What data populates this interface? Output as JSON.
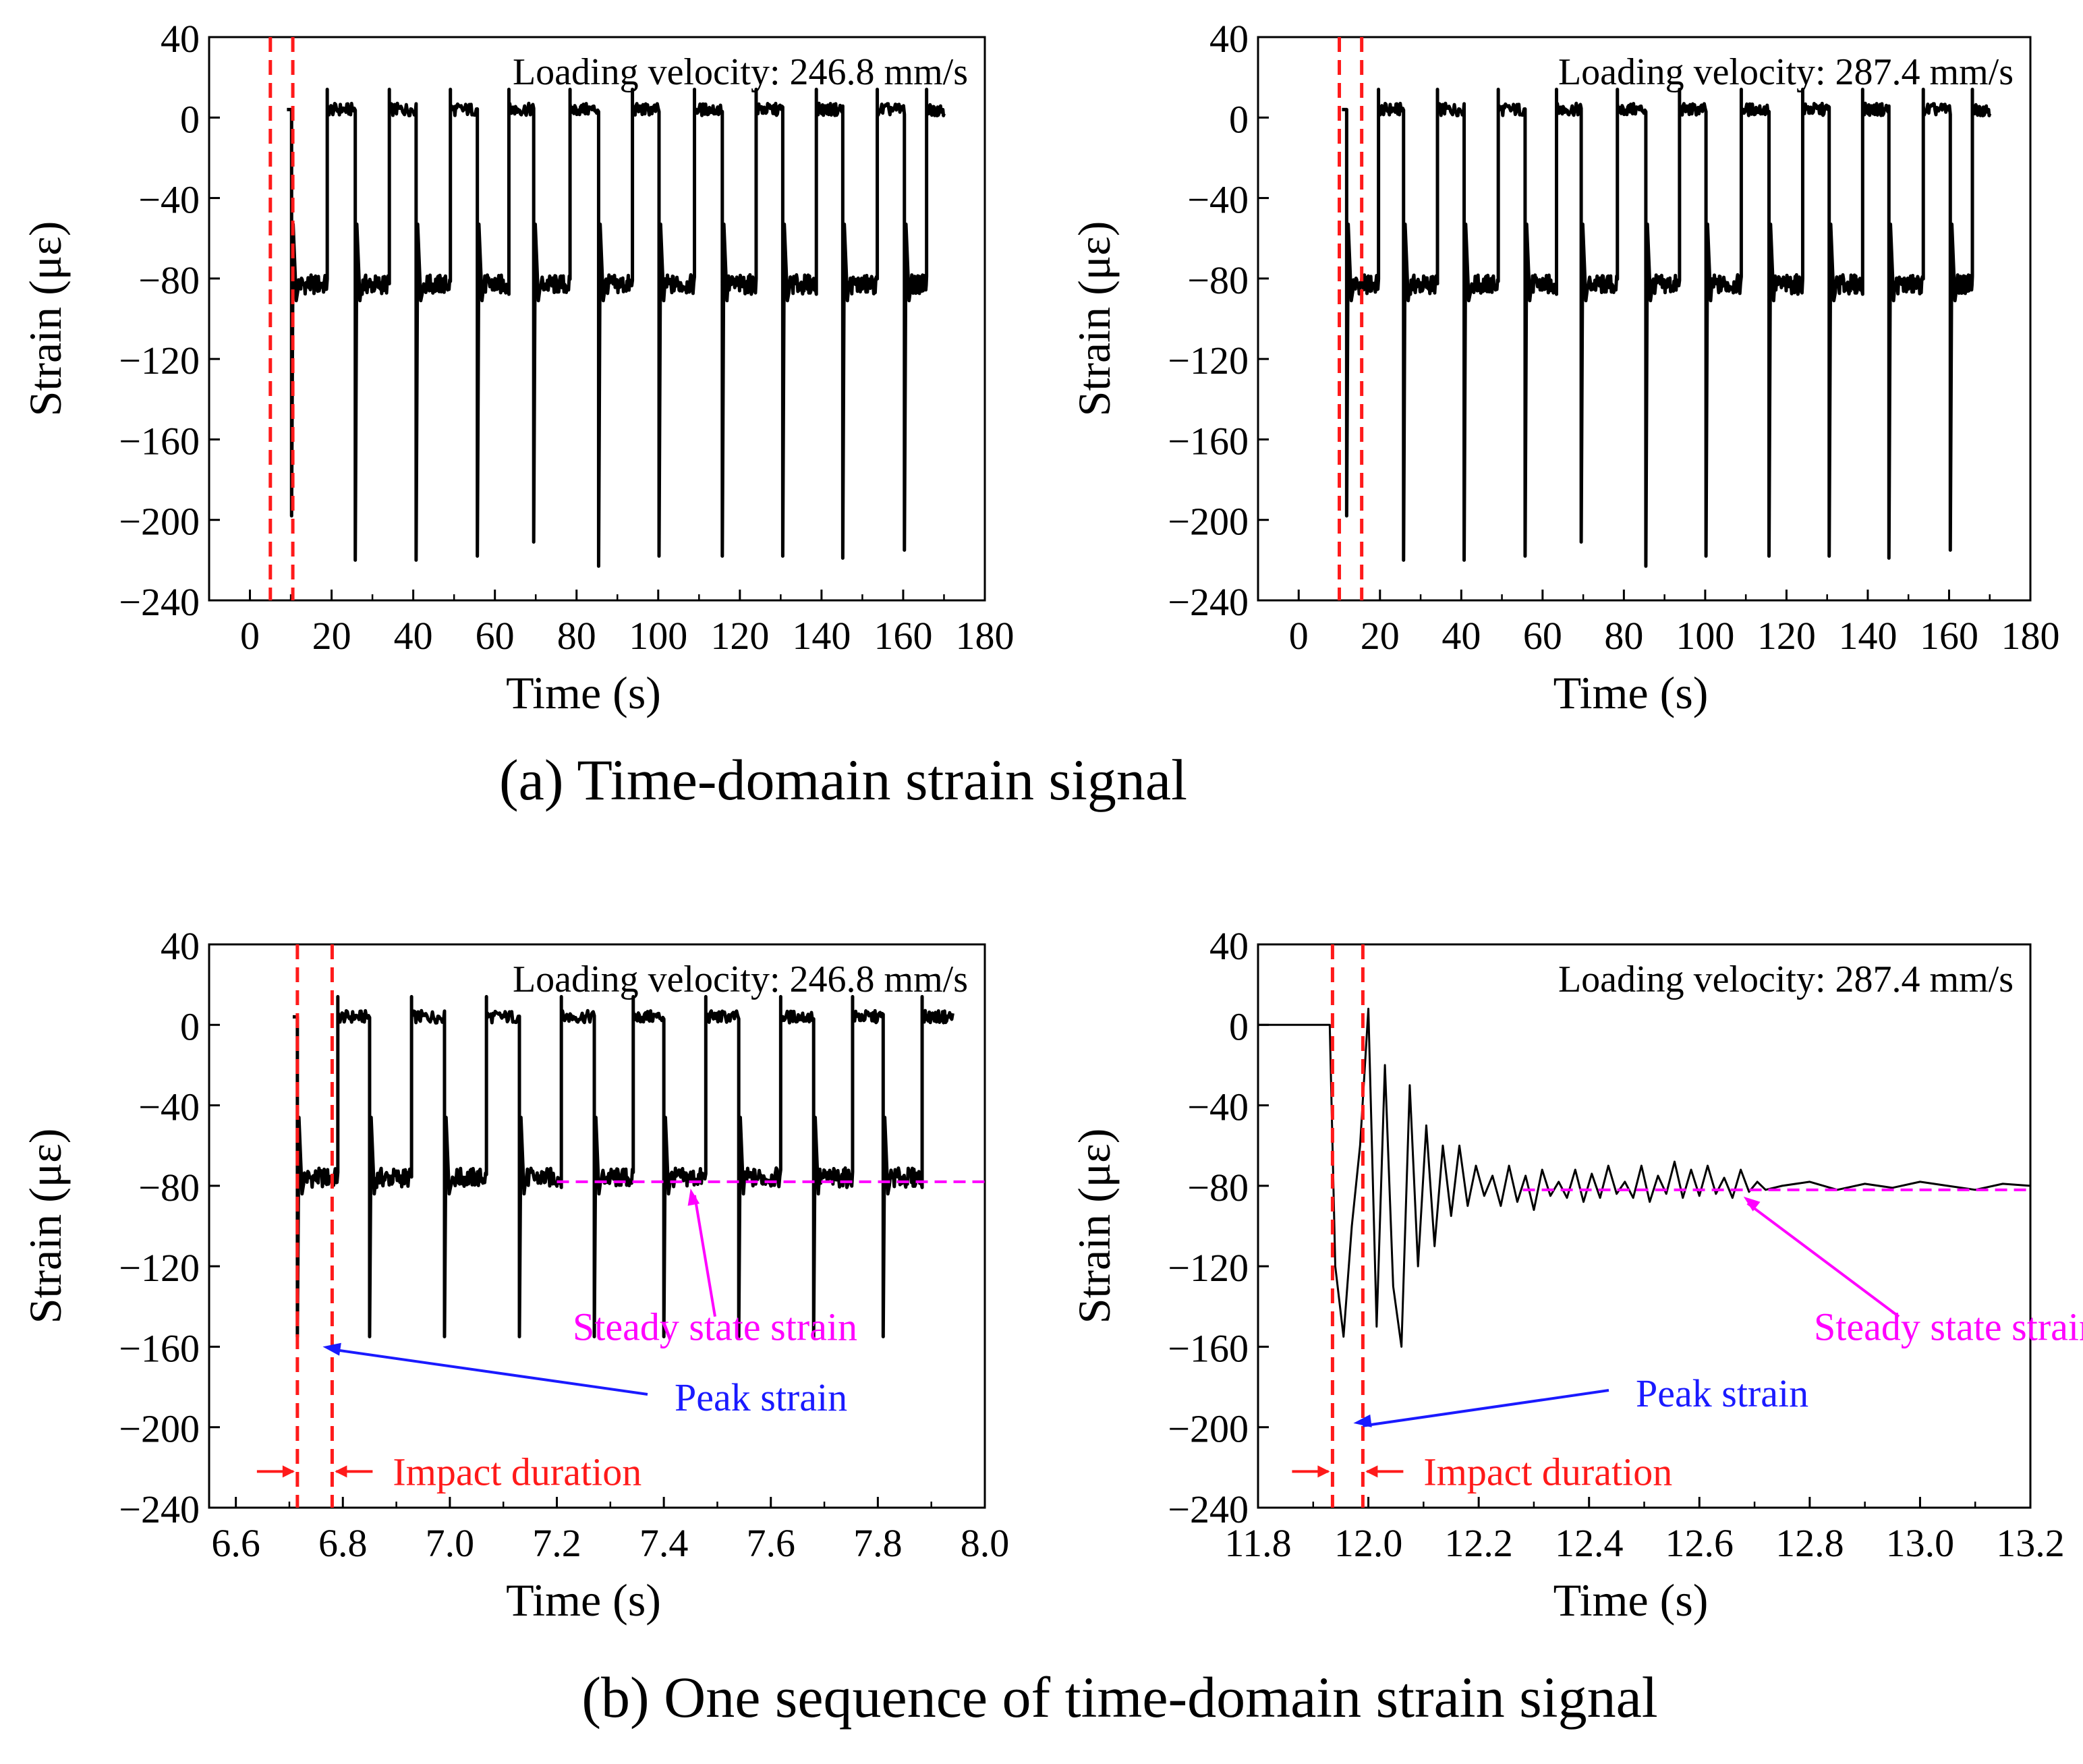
{
  "captions": {
    "a": "(a) Time-domain strain signal",
    "b": "(b) One sequence of time-domain strain signal"
  },
  "colors": {
    "signal": "#000000",
    "marker_red": "#ff1a1a",
    "steady_magenta": "#ff00ff",
    "peak_blue": "#1a1aff"
  },
  "chart_data": [
    {
      "id": "a-left",
      "type": "line",
      "title": "",
      "xlabel": "Time (s)",
      "ylabel": "Strain (με)",
      "xlim": [
        -10,
        180
      ],
      "ylim": [
        -240,
        40
      ],
      "xticks": [
        0,
        20,
        40,
        60,
        80,
        100,
        120,
        140,
        160,
        180
      ],
      "yticks": [
        40,
        0,
        -40,
        -80,
        -120,
        -160,
        -200,
        -240
      ],
      "xtick_labels": [
        "0",
        "20",
        "40",
        "60",
        "80",
        "100",
        "120",
        "140",
        "160",
        "180"
      ],
      "ytick_labels": [
        "40",
        "0",
        "−40",
        "−80",
        "−120",
        "−160",
        "−200",
        "−240"
      ],
      "annotation": "Loading velocity: 246.8 mm/s",
      "mode": "cycles",
      "cycles": {
        "starts": [
          10.2,
          25.8,
          40.7,
          55.7,
          69.5,
          85.4,
          100.2,
          115.7,
          130.5,
          145.2,
          160.3
        ],
        "peaks": [
          -198,
          -220,
          -220,
          -218,
          -211,
          -223,
          -218,
          -218,
          -218,
          -219,
          -215
        ],
        "baseline_upper": 4,
        "baseline_lower": -83,
        "end": 170
      },
      "markers": [
        5,
        10.5
      ]
    },
    {
      "id": "a-right",
      "type": "line",
      "title": "",
      "xlabel": "Time (s)",
      "ylabel": "Strain (με)",
      "xlim": [
        -10,
        180
      ],
      "ylim": [
        -240,
        40
      ],
      "xticks": [
        0,
        20,
        40,
        60,
        80,
        100,
        120,
        140,
        160,
        180
      ],
      "yticks": [
        40,
        0,
        -40,
        -80,
        -120,
        -160,
        -200,
        -240
      ],
      "xtick_labels": [
        "0",
        "20",
        "40",
        "60",
        "80",
        "100",
        "120",
        "140",
        "160",
        "180"
      ],
      "ytick_labels": [
        "40",
        "0",
        "−40",
        "−80",
        "−120",
        "−160",
        "−200",
        "−240"
      ],
      "annotation": "Loading velocity: 287.4 mm/s",
      "mode": "cycles",
      "cycles": {
        "starts": [
          11.8,
          25.8,
          40.7,
          55.7,
          69.5,
          85.4,
          100.2,
          115.7,
          130.5,
          145.2,
          160.3
        ],
        "peaks": [
          -198,
          -220,
          -220,
          -218,
          -211,
          -223,
          -218,
          -218,
          -218,
          -219,
          -215
        ],
        "baseline_upper": 4,
        "baseline_lower": -83,
        "end": 170
      },
      "markers": [
        10,
        15.5
      ]
    },
    {
      "id": "b-left",
      "type": "line",
      "title": "",
      "xlabel": "Time (s)",
      "ylabel": "Strain (με)",
      "xlim": [
        6.55,
        8.0
      ],
      "ylim": [
        -240,
        40
      ],
      "xticks": [
        6.6,
        6.8,
        7.0,
        7.2,
        7.4,
        7.6,
        7.8,
        8.0
      ],
      "yticks": [
        40,
        0,
        -40,
        -80,
        -120,
        -160,
        -200,
        -240
      ],
      "xtick_labels": [
        "6.6",
        "6.8",
        "7.0",
        "7.2",
        "7.4",
        "7.6",
        "7.8",
        "8.0"
      ],
      "ytick_labels": [
        "40",
        "0",
        "−40",
        "−80",
        "−120",
        "−160",
        "−200",
        "−240"
      ],
      "annotation": "Loading velocity: 246.8 mm/s",
      "mode": "cycles",
      "cycles": {
        "starts": [
          6.715,
          6.85,
          6.99,
          7.13,
          7.27,
          7.4,
          7.54,
          7.68,
          7.81
        ],
        "peaks": [
          -155,
          -155,
          -155,
          -155,
          -155,
          -155,
          -155,
          -155,
          -155
        ],
        "baseline_upper": 4,
        "baseline_lower": -76,
        "end": 7.94
      },
      "markers": [
        6.715,
        6.78
      ],
      "steady_line": {
        "y": -78,
        "x_from": 7.2,
        "x_to": 8.0
      },
      "labels": {
        "steady": "Steady state strain",
        "peak": "Peak strain",
        "duration": "Impact duration"
      }
    },
    {
      "id": "b-right",
      "type": "line",
      "title": "",
      "xlabel": "Time (s)",
      "ylabel": "Strain (με)",
      "xlim": [
        11.8,
        13.2
      ],
      "ylim": [
        -240,
        40
      ],
      "xticks": [
        11.8,
        12.0,
        12.2,
        12.4,
        12.6,
        12.8,
        13.0,
        13.2
      ],
      "yticks": [
        40,
        0,
        -40,
        -80,
        -120,
        -160,
        -200,
        -240
      ],
      "xtick_labels": [
        "11.8",
        "12.0",
        "12.2",
        "12.4",
        "12.6",
        "12.8",
        "13.0",
        "13.2"
      ],
      "ytick_labels": [
        "40",
        "0",
        "−40",
        "−80",
        "−120",
        "−160",
        "−200",
        "−240"
      ],
      "annotation": "Loading velocity: 287.4 mm/s",
      "mode": "response",
      "response": {
        "x": [
          11.8,
          11.93,
          11.94,
          11.955,
          11.97,
          11.985,
          12.0,
          12.015,
          12.03,
          12.045,
          12.06,
          12.075,
          12.09,
          12.105,
          12.12,
          12.135,
          12.15,
          12.165,
          12.18,
          12.195,
          12.21,
          12.225,
          12.24,
          12.255,
          12.27,
          12.285,
          12.3,
          12.315,
          12.33,
          12.345,
          12.36,
          12.375,
          12.39,
          12.405,
          12.42,
          12.435,
          12.45,
          12.465,
          12.48,
          12.495,
          12.51,
          12.525,
          12.54,
          12.555,
          12.57,
          12.585,
          12.6,
          12.615,
          12.63,
          12.645,
          12.66,
          12.675,
          12.69,
          12.705,
          12.72,
          12.75,
          12.8,
          12.85,
          12.9,
          12.95,
          13.0,
          13.05,
          13.1,
          13.15,
          13.2
        ],
        "y": [
          0,
          0,
          -120,
          -155,
          -100,
          -60,
          8,
          -150,
          -20,
          -130,
          -160,
          -30,
          -120,
          -50,
          -110,
          -60,
          -95,
          -60,
          -90,
          -70,
          -85,
          -75,
          -90,
          -70,
          -88,
          -75,
          -92,
          -72,
          -85,
          -78,
          -86,
          -72,
          -88,
          -74,
          -86,
          -70,
          -84,
          -78,
          -86,
          -70,
          -88,
          -75,
          -84,
          -68,
          -86,
          -72,
          -85,
          -70,
          -84,
          -76,
          -86,
          -72,
          -83,
          -78,
          -82,
          -80,
          -78,
          -82,
          -79,
          -81,
          -78,
          -80,
          -82,
          -79,
          -80
        ]
      },
      "markers": [
        11.935,
        11.99
      ],
      "steady_line": {
        "y": -82,
        "x_from": 12.28,
        "x_to": 13.2
      },
      "labels": {
        "steady": "Steady state strain",
        "peak": "Peak strain",
        "duration": "Impact duration"
      }
    }
  ]
}
